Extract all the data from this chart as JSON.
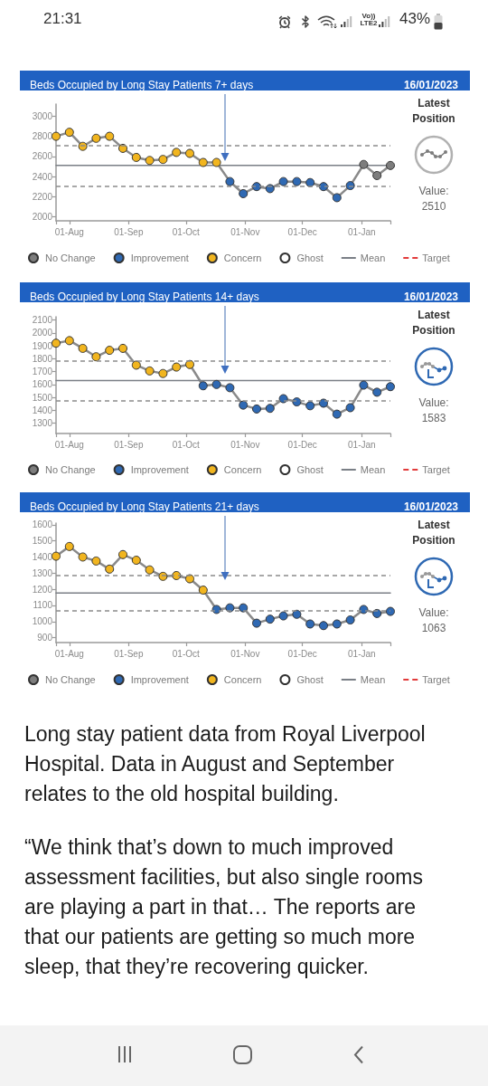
{
  "chart_data": [
    {
      "type": "other",
      "annotations": [
        "21:31",
        "Vo)) LTE2",
        "43%"
      ]
    },
    {
      "type": "line",
      "title": "Beds Occupied by Long Stay Patients 7+ days",
      "x": [
        "2022-07-25",
        "2022-08-01",
        "2022-08-08",
        "2022-08-15",
        "2022-08-22",
        "2022-08-29",
        "2022-09-05",
        "2022-09-12",
        "2022-09-19",
        "2022-09-26",
        "2022-10-03",
        "2022-10-10",
        "2022-10-17",
        "2022-10-24",
        "2022-10-31",
        "2022-11-07",
        "2022-11-14",
        "2022-11-21",
        "2022-11-28",
        "2022-12-05",
        "2022-12-12",
        "2022-12-19",
        "2022-12-26",
        "2023-01-02",
        "2023-01-09",
        "2023-01-16"
      ],
      "xlim": [
        "2022-07-25",
        "2023-01-16"
      ],
      "xticks": [
        {
          "value": "2022-07-25",
          "label": null
        },
        {
          "value": "2022-08-01",
          "label": "01-Aug"
        },
        {
          "value": "2022-09-01",
          "label": "01-Sep"
        },
        {
          "value": "2022-10-01",
          "label": "01-Oct"
        },
        {
          "value": "2022-11-01",
          "label": "01-Nov"
        },
        {
          "value": "2022-12-01",
          "label": "01-Dec"
        },
        {
          "value": "2023-01-01",
          "label": "01-Jan"
        },
        {
          "value": "2023-01-16",
          "label": null
        }
      ],
      "ylim": [
        1960,
        3120
      ],
      "yticks": [
        2000,
        2200,
        2400,
        2600,
        2800,
        3000
      ],
      "marker": "circle",
      "legend": "bottom",
      "series": [
        {
          "color": "#8a8a8a",
          "marker": "none",
          "values": [
            2800,
            2840,
            2700,
            2780,
            2800,
            2680,
            2590,
            2560,
            2570,
            2640,
            2630,
            2540,
            2540,
            2350,
            2230,
            2300,
            2280,
            2350,
            2350,
            2340,
            2300,
            2190,
            2310,
            2520,
            2410,
            2510
          ]
        },
        {
          "name": "No Change",
          "type": "scatter",
          "color": "#7d7d7d",
          "values": [
            null,
            null,
            null,
            null,
            null,
            null,
            null,
            null,
            null,
            null,
            null,
            null,
            null,
            null,
            null,
            null,
            null,
            null,
            null,
            null,
            null,
            null,
            null,
            2520,
            2410,
            2510
          ]
        },
        {
          "name": "Improvement",
          "type": "scatter",
          "color": "#2f69b3",
          "values": [
            null,
            null,
            null,
            null,
            null,
            null,
            null,
            null,
            null,
            null,
            null,
            null,
            null,
            2350,
            2230,
            2300,
            2280,
            2350,
            2350,
            2340,
            2300,
            2190,
            2310,
            null,
            null,
            null
          ]
        },
        {
          "name": "Concern",
          "type": "scatter",
          "color": "#f1b51f",
          "values": [
            2800,
            2840,
            2700,
            2780,
            2800,
            2680,
            2590,
            2560,
            2570,
            2640,
            2630,
            2540,
            2540,
            null,
            null,
            null,
            null,
            null,
            null,
            null,
            null,
            null,
            null,
            null,
            null,
            null
          ]
        },
        {
          "name": "Ghost",
          "type": "scatter",
          "color": "#ffffff",
          "values": [
            null,
            null,
            null,
            null,
            null,
            null,
            null,
            null,
            null,
            null,
            null,
            null,
            null,
            null,
            null,
            null,
            null,
            null,
            null,
            null,
            null,
            null,
            null,
            null,
            null,
            null
          ]
        },
        {
          "name": "Mean",
          "color": "#7a7f86",
          "marker": "none",
          "values": [
            2510,
            2510,
            2510,
            2510,
            2510,
            2510,
            2510,
            2510,
            2510,
            2510,
            2510,
            2510,
            2510,
            2510,
            2510,
            2510,
            2510,
            2510,
            2510,
            2510,
            2510,
            2510,
            2510,
            2510,
            2510,
            2510
          ]
        },
        {
          "name": "Target",
          "color": "#e23b3b",
          "marker": "none",
          "line_style": "dashed",
          "values": [
            null,
            null,
            null,
            null,
            null,
            null,
            null,
            null,
            null,
            null,
            null,
            null,
            null,
            null,
            null,
            null,
            null,
            null,
            null,
            null,
            null,
            null,
            null,
            null,
            null,
            null
          ]
        }
      ],
      "ref_lines": [
        {
          "axis": "y",
          "value": 2710,
          "line_style": "dashed",
          "color": "#8c8c8c"
        },
        {
          "axis": "y",
          "value": 2300,
          "line_style": "dashed",
          "color": "#8c8c8c"
        }
      ],
      "annotations": [
        "16/01/2023",
        "Latest Position",
        "Value: 2510"
      ]
    },
    {
      "type": "line",
      "title": "Beds Occupied by Long Stay Patients 14+ days",
      "x": [
        "2022-07-25",
        "2022-08-01",
        "2022-08-08",
        "2022-08-15",
        "2022-08-22",
        "2022-08-29",
        "2022-09-05",
        "2022-09-12",
        "2022-09-19",
        "2022-09-26",
        "2022-10-03",
        "2022-10-10",
        "2022-10-17",
        "2022-10-24",
        "2022-10-31",
        "2022-11-07",
        "2022-11-14",
        "2022-11-21",
        "2022-11-28",
        "2022-12-05",
        "2022-12-12",
        "2022-12-19",
        "2022-12-26",
        "2023-01-02",
        "2023-01-09",
        "2023-01-16"
      ],
      "xlim": [
        "2022-07-25",
        "2023-01-16"
      ],
      "xticks": [
        {
          "value": "2022-07-25",
          "label": null
        },
        {
          "value": "2022-08-01",
          "label": "01-Aug"
        },
        {
          "value": "2022-09-01",
          "label": "01-Sep"
        },
        {
          "value": "2022-10-01",
          "label": "01-Oct"
        },
        {
          "value": "2022-11-01",
          "label": "01-Nov"
        },
        {
          "value": "2022-12-01",
          "label": "01-Dec"
        },
        {
          "value": "2023-01-01",
          "label": "01-Jan"
        },
        {
          "value": "2023-01-16",
          "label": null
        }
      ],
      "ylim": [
        1220,
        2125
      ],
      "yticks": [
        1300,
        1400,
        1500,
        1600,
        1700,
        1800,
        1900,
        2000,
        2100
      ],
      "marker": "circle",
      "legend": "bottom",
      "series": [
        {
          "color": "#8a8a8a",
          "marker": "none",
          "values": [
            1920,
            1940,
            1880,
            1815,
            1865,
            1880,
            1750,
            1705,
            1685,
            1735,
            1755,
            1590,
            1600,
            1575,
            1440,
            1410,
            1415,
            1490,
            1465,
            1435,
            1455,
            1370,
            1420,
            1595,
            1540,
            1583
          ]
        },
        {
          "name": "No Change",
          "type": "scatter",
          "color": "#7d7d7d",
          "values": [
            null,
            null,
            null,
            null,
            null,
            null,
            null,
            null,
            null,
            null,
            null,
            null,
            null,
            null,
            null,
            null,
            null,
            null,
            null,
            null,
            null,
            null,
            null,
            null,
            null,
            null
          ]
        },
        {
          "name": "Improvement",
          "type": "scatter",
          "color": "#2f69b3",
          "values": [
            null,
            null,
            null,
            null,
            null,
            null,
            null,
            null,
            null,
            null,
            null,
            1590,
            1600,
            1575,
            1440,
            1410,
            1415,
            1490,
            1465,
            1435,
            1455,
            1370,
            1420,
            1595,
            1540,
            1583
          ]
        },
        {
          "name": "Concern",
          "type": "scatter",
          "color": "#f1b51f",
          "values": [
            1920,
            1940,
            1880,
            1815,
            1865,
            1880,
            1750,
            1705,
            1685,
            1735,
            1755,
            null,
            null,
            null,
            null,
            null,
            null,
            null,
            null,
            null,
            null,
            null,
            null,
            null,
            null,
            null
          ]
        },
        {
          "name": "Ghost",
          "type": "scatter",
          "color": "#ffffff",
          "values": [
            null,
            null,
            null,
            null,
            null,
            null,
            null,
            null,
            null,
            null,
            null,
            null,
            null,
            null,
            null,
            null,
            null,
            null,
            null,
            null,
            null,
            null,
            null,
            null,
            null,
            null
          ]
        },
        {
          "name": "Mean",
          "color": "#7a7f86",
          "marker": "none",
          "values": [
            1630,
            1630,
            1630,
            1630,
            1630,
            1630,
            1630,
            1630,
            1630,
            1630,
            1630,
            1630,
            1630,
            1630,
            1630,
            1630,
            1630,
            1630,
            1630,
            1630,
            1630,
            1630,
            1630,
            1630,
            1630,
            1630
          ]
        },
        {
          "name": "Target",
          "color": "#e23b3b",
          "marker": "none",
          "line_style": "dashed",
          "values": [
            null,
            null,
            null,
            null,
            null,
            null,
            null,
            null,
            null,
            null,
            null,
            null,
            null,
            null,
            null,
            null,
            null,
            null,
            null,
            null,
            null,
            null,
            null,
            null,
            null,
            null
          ]
        }
      ],
      "ref_lines": [
        {
          "axis": "y",
          "value": 1780,
          "line_style": "dashed",
          "color": "#8c8c8c"
        },
        {
          "axis": "y",
          "value": 1475,
          "line_style": "dashed",
          "color": "#8c8c8c"
        }
      ],
      "annotations": [
        "16/01/2023",
        "Latest Position",
        "Value: 1583"
      ]
    },
    {
      "type": "line",
      "title": "Beds Occupied by Long Stay Patients 21+ days",
      "x": [
        "2022-07-25",
        "2022-08-01",
        "2022-08-08",
        "2022-08-15",
        "2022-08-22",
        "2022-08-29",
        "2022-09-05",
        "2022-09-12",
        "2022-09-19",
        "2022-09-26",
        "2022-10-03",
        "2022-10-10",
        "2022-10-17",
        "2022-10-24",
        "2022-10-31",
        "2022-11-07",
        "2022-11-14",
        "2022-11-21",
        "2022-11-28",
        "2022-12-05",
        "2022-12-12",
        "2022-12-19",
        "2022-12-26",
        "2023-01-02",
        "2023-01-09",
        "2023-01-16"
      ],
      "xlim": [
        "2022-07-25",
        "2023-01-16"
      ],
      "xticks": [
        {
          "value": "2022-07-25",
          "label": null
        },
        {
          "value": "2022-08-01",
          "label": "01-Aug"
        },
        {
          "value": "2022-09-01",
          "label": "01-Sep"
        },
        {
          "value": "2022-10-01",
          "label": "01-Oct"
        },
        {
          "value": "2022-11-01",
          "label": "01-Nov"
        },
        {
          "value": "2022-12-01",
          "label": "01-Dec"
        },
        {
          "value": "2023-01-01",
          "label": "01-Jan"
        },
        {
          "value": "2023-01-16",
          "label": null
        }
      ],
      "ylim": [
        870,
        1610
      ],
      "yticks": [
        900,
        1000,
        1100,
        1200,
        1300,
        1400,
        1500,
        1600
      ],
      "marker": "circle",
      "legend": "bottom",
      "series": [
        {
          "color": "#8a8a8a",
          "marker": "none",
          "values": [
            1405,
            1465,
            1400,
            1375,
            1325,
            1415,
            1380,
            1320,
            1280,
            1285,
            1265,
            1195,
            1075,
            1085,
            1085,
            990,
            1015,
            1035,
            1045,
            985,
            975,
            985,
            1010,
            1075,
            1050,
            1063
          ]
        },
        {
          "name": "No Change",
          "type": "scatter",
          "color": "#7d7d7d",
          "values": [
            null,
            null,
            null,
            null,
            null,
            null,
            null,
            null,
            null,
            null,
            null,
            null,
            null,
            null,
            null,
            null,
            null,
            null,
            null,
            null,
            null,
            null,
            null,
            null,
            null,
            null
          ]
        },
        {
          "name": "Improvement",
          "type": "scatter",
          "color": "#2f69b3",
          "values": [
            null,
            null,
            null,
            null,
            null,
            null,
            null,
            null,
            null,
            null,
            null,
            null,
            1075,
            1085,
            1085,
            990,
            1015,
            1035,
            1045,
            985,
            975,
            985,
            1010,
            1075,
            1050,
            1063
          ]
        },
        {
          "name": "Concern",
          "type": "scatter",
          "color": "#f1b51f",
          "values": [
            1405,
            1465,
            1400,
            1375,
            1325,
            1415,
            1380,
            1320,
            1280,
            1285,
            1265,
            1195,
            null,
            null,
            null,
            null,
            null,
            null,
            null,
            null,
            null,
            null,
            null,
            null,
            null,
            null
          ]
        },
        {
          "name": "Ghost",
          "type": "scatter",
          "color": "#ffffff",
          "values": [
            null,
            null,
            null,
            null,
            null,
            null,
            null,
            null,
            null,
            null,
            null,
            null,
            null,
            null,
            null,
            null,
            null,
            null,
            null,
            null,
            null,
            null,
            null,
            null,
            null,
            null
          ]
        },
        {
          "name": "Mean",
          "color": "#7a7f86",
          "marker": "none",
          "values": [
            1177,
            1177,
            1177,
            1177,
            1177,
            1177,
            1177,
            1177,
            1177,
            1177,
            1177,
            1177,
            1177,
            1177,
            1177,
            1177,
            1177,
            1177,
            1177,
            1177,
            1177,
            1177,
            1177,
            1177,
            1177,
            1177
          ]
        },
        {
          "name": "Target",
          "color": "#e23b3b",
          "marker": "none",
          "line_style": "dashed",
          "values": [
            null,
            null,
            null,
            null,
            null,
            null,
            null,
            null,
            null,
            null,
            null,
            null,
            null,
            null,
            null,
            null,
            null,
            null,
            null,
            null,
            null,
            null,
            null,
            null,
            null,
            null
          ]
        }
      ],
      "ref_lines": [
        {
          "axis": "y",
          "value": 1285,
          "line_style": "dashed",
          "color": "#8c8c8c"
        },
        {
          "axis": "y",
          "value": 1070,
          "line_style": "dashed",
          "color": "#8c8c8c"
        }
      ],
      "annotations": [
        "16/01/2023",
        "Latest Position",
        "Value: 1063"
      ]
    },
    {
      "type": "other",
      "annotations": [
        "Long stay patient data from Royal Liverpool Hospital. Data in August and September relates to the old hospital building.",
        "“We think that’s down to much improved assessment facilities, but also single rooms are playing a part in that… The reports are that our patients are getting so much more sleep, that they’re recovering quicker."
      ]
    }
  ]
}
